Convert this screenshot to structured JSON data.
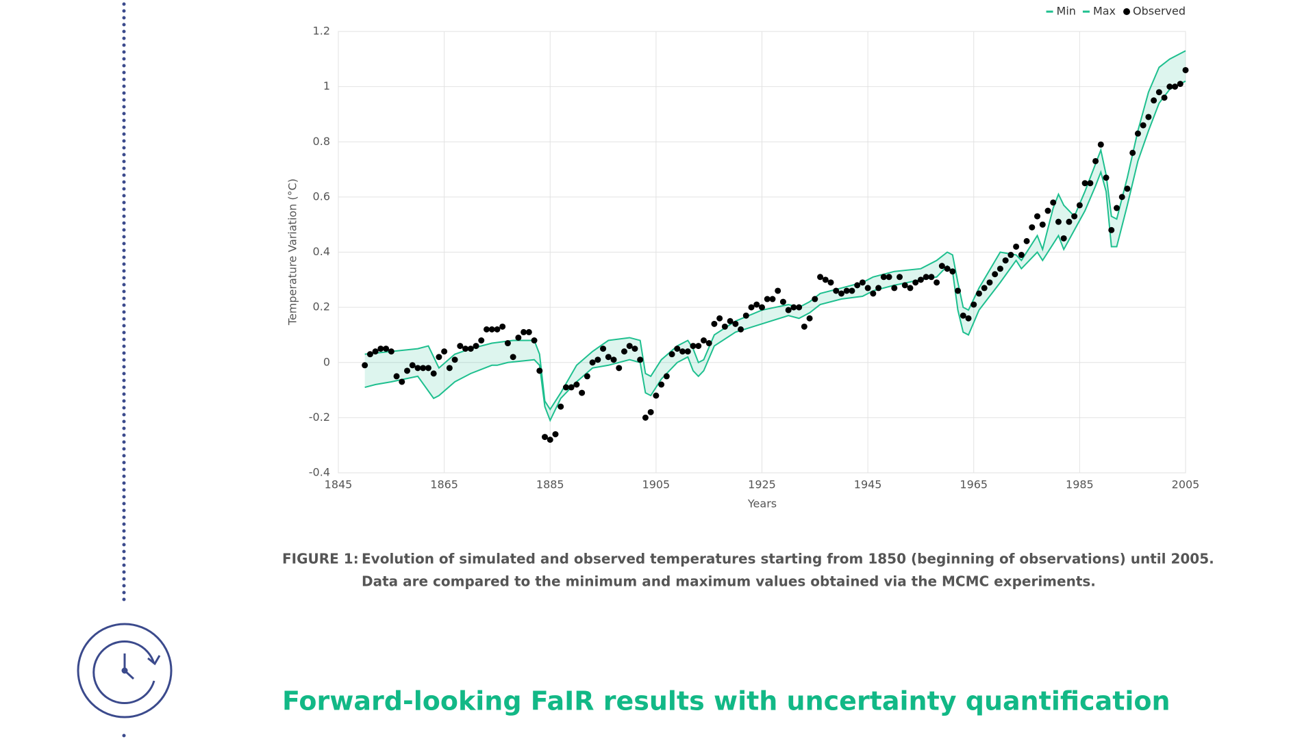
{
  "chart_data": {
    "type": "line",
    "x_label": "Years",
    "y_label": "Temperature  Variation (°C)",
    "xlim": [
      1845,
      2005
    ],
    "xticks": [
      1845,
      1865,
      1885,
      1905,
      1925,
      1945,
      1965,
      1985,
      2005
    ],
    "ylim": [
      -0.4,
      1.2
    ],
    "yticks": [
      1.2,
      1,
      0.8,
      0.6,
      0.4,
      0.2,
      0,
      -0.2,
      -0.4
    ],
    "grid": true,
    "legend": "top-right",
    "series": [
      {
        "name": "Min",
        "color": "#1dbf8e",
        "x": [
          1850,
          1852,
          1855,
          1860,
          1863,
          1864,
          1867,
          1870,
          1874,
          1875,
          1877,
          1882,
          1883,
          1884,
          1885,
          1887,
          1890,
          1893,
          1896,
          1900,
          1902,
          1903,
          1904,
          1906,
          1909,
          1911,
          1912,
          1913,
          1914,
          1916,
          1920,
          1925,
          1930,
          1932,
          1934,
          1936,
          1940,
          1944,
          1946,
          1950,
          1955,
          1958,
          1960,
          1961,
          1962,
          1963,
          1964,
          1966,
          1970,
          1973,
          1974,
          1977,
          1978,
          1980,
          1981,
          1982,
          1984,
          1986,
          1988,
          1989,
          1990,
          1991,
          1992,
          1994,
          1996,
          1998,
          2000,
          2002,
          2005
        ],
        "values": [
          -0.09,
          -0.08,
          -0.07,
          -0.05,
          -0.13,
          -0.12,
          -0.07,
          -0.04,
          -0.01,
          -0.01,
          0.0,
          0.01,
          -0.01,
          -0.16,
          -0.21,
          -0.13,
          -0.07,
          -0.02,
          -0.01,
          0.01,
          0.0,
          -0.11,
          -0.12,
          -0.06,
          0.0,
          0.02,
          -0.03,
          -0.05,
          -0.03,
          0.06,
          0.11,
          0.14,
          0.17,
          0.16,
          0.18,
          0.21,
          0.23,
          0.24,
          0.26,
          0.28,
          0.3,
          0.31,
          0.35,
          0.33,
          0.19,
          0.11,
          0.1,
          0.19,
          0.29,
          0.37,
          0.34,
          0.4,
          0.37,
          0.43,
          0.46,
          0.41,
          0.48,
          0.55,
          0.64,
          0.69,
          0.62,
          0.42,
          0.42,
          0.57,
          0.73,
          0.84,
          0.94,
          0.99,
          1.02
        ]
      },
      {
        "name": "Max",
        "color": "#1dbf8e",
        "x": [
          1850,
          1855,
          1860,
          1862,
          1864,
          1867,
          1870,
          1874,
          1878,
          1882,
          1883,
          1884,
          1885,
          1887,
          1890,
          1893,
          1896,
          1900,
          1902,
          1903,
          1904,
          1906,
          1909,
          1911,
          1912,
          1913,
          1914,
          1916,
          1920,
          1925,
          1930,
          1932,
          1934,
          1936,
          1940,
          1944,
          1946,
          1950,
          1955,
          1958,
          1960,
          1961,
          1962,
          1963,
          1964,
          1966,
          1970,
          1973,
          1974,
          1977,
          1978,
          1980,
          1981,
          1982,
          1984,
          1986,
          1988,
          1989,
          1990,
          1991,
          1992,
          1994,
          1996,
          1998,
          2000,
          2002,
          2005
        ],
        "values": [
          0.03,
          0.04,
          0.05,
          0.06,
          -0.02,
          0.03,
          0.05,
          0.07,
          0.08,
          0.08,
          0.03,
          -0.14,
          -0.17,
          -0.11,
          -0.01,
          0.04,
          0.08,
          0.09,
          0.08,
          -0.04,
          -0.05,
          0.01,
          0.06,
          0.08,
          0.05,
          0.0,
          0.01,
          0.1,
          0.15,
          0.19,
          0.21,
          0.2,
          0.22,
          0.25,
          0.27,
          0.29,
          0.31,
          0.33,
          0.34,
          0.37,
          0.4,
          0.39,
          0.29,
          0.2,
          0.19,
          0.27,
          0.4,
          0.39,
          0.37,
          0.46,
          0.41,
          0.56,
          0.61,
          0.57,
          0.53,
          0.62,
          0.72,
          0.77,
          0.68,
          0.53,
          0.52,
          0.67,
          0.84,
          0.98,
          1.07,
          1.1,
          1.13
        ]
      },
      {
        "name": "Observed",
        "color": "#000000",
        "marker": "dot",
        "x": [
          1850,
          1851,
          1852,
          1853,
          1854,
          1855,
          1856,
          1857,
          1858,
          1859,
          1860,
          1861,
          1862,
          1863,
          1864,
          1865,
          1866,
          1867,
          1868,
          1869,
          1870,
          1871,
          1872,
          1873,
          1874,
          1875,
          1876,
          1877,
          1878,
          1879,
          1880,
          1881,
          1882,
          1883,
          1884,
          1885,
          1886,
          1887,
          1888,
          1889,
          1890,
          1891,
          1892,
          1893,
          1894,
          1895,
          1896,
          1897,
          1898,
          1899,
          1900,
          1901,
          1902,
          1903,
          1904,
          1905,
          1906,
          1907,
          1908,
          1909,
          1910,
          1911,
          1912,
          1913,
          1914,
          1915,
          1916,
          1917,
          1918,
          1919,
          1920,
          1921,
          1922,
          1923,
          1924,
          1925,
          1926,
          1927,
          1928,
          1929,
          1930,
          1931,
          1932,
          1933,
          1934,
          1935,
          1936,
          1937,
          1938,
          1939,
          1940,
          1941,
          1942,
          1943,
          1944,
          1945,
          1946,
          1947,
          1948,
          1949,
          1950,
          1951,
          1952,
          1953,
          1954,
          1955,
          1956,
          1957,
          1958,
          1959,
          1960,
          1961,
          1962,
          1963,
          1964,
          1965,
          1966,
          1967,
          1968,
          1969,
          1970,
          1971,
          1972,
          1973,
          1974,
          1975,
          1976,
          1977,
          1978,
          1979,
          1980,
          1981,
          1982,
          1983,
          1984,
          1985,
          1986,
          1987,
          1988,
          1989,
          1990,
          1991,
          1992,
          1993,
          1994,
          1995,
          1996,
          1997,
          1998,
          1999,
          2000,
          2001,
          2002,
          2003,
          2004,
          2005
        ],
        "values": [
          -0.01,
          0.03,
          0.04,
          0.05,
          0.05,
          0.04,
          -0.05,
          -0.07,
          -0.03,
          -0.01,
          -0.02,
          -0.02,
          -0.02,
          -0.04,
          0.02,
          0.04,
          -0.02,
          0.01,
          0.06,
          0.05,
          0.05,
          0.06,
          0.08,
          0.12,
          0.12,
          0.12,
          0.13,
          0.07,
          0.02,
          0.09,
          0.11,
          0.11,
          0.08,
          -0.03,
          -0.27,
          -0.28,
          -0.26,
          -0.16,
          -0.09,
          -0.09,
          -0.08,
          -0.11,
          -0.05,
          0.0,
          0.01,
          0.05,
          0.02,
          0.01,
          -0.02,
          0.04,
          0.06,
          0.05,
          0.01,
          -0.2,
          -0.18,
          -0.12,
          -0.08,
          -0.05,
          0.03,
          0.05,
          0.04,
          0.04,
          0.06,
          0.06,
          0.08,
          0.07,
          0.14,
          0.16,
          0.13,
          0.15,
          0.14,
          0.12,
          0.17,
          0.2,
          0.21,
          0.2,
          0.23,
          0.23,
          0.26,
          0.22,
          0.19,
          0.2,
          0.2,
          0.13,
          0.16,
          0.23,
          0.31,
          0.3,
          0.29,
          0.26,
          0.25,
          0.26,
          0.26,
          0.28,
          0.29,
          0.27,
          0.25,
          0.27,
          0.31,
          0.31,
          0.27,
          0.31,
          0.28,
          0.27,
          0.29,
          0.3,
          0.31,
          0.31,
          0.29,
          0.35,
          0.34,
          0.33,
          0.26,
          0.17,
          0.16,
          0.21,
          0.25,
          0.27,
          0.29,
          0.32,
          0.34,
          0.37,
          0.39,
          0.42,
          0.39,
          0.44,
          0.49,
          0.53,
          0.5,
          0.55,
          0.58,
          0.51,
          0.45,
          0.51,
          0.53,
          0.57,
          0.65,
          0.65,
          0.73,
          0.79,
          0.67,
          0.48,
          0.56,
          0.6,
          0.63,
          0.76,
          0.83,
          0.86,
          0.89,
          0.95,
          0.98,
          0.96,
          1.0,
          1.0,
          1.01,
          1.06
        ]
      }
    ]
  },
  "caption": {
    "label": "FIGURE 1:",
    "lines": [
      "Evolution of simulated and observed temperatures starting from 1850 (beginning of observations) until 2005.",
      "Data are compared to the minimum and maximum values obtained via the MCMC experiments."
    ]
  },
  "heading": "Forward-looking FaIR results with uncertainty quantification"
}
